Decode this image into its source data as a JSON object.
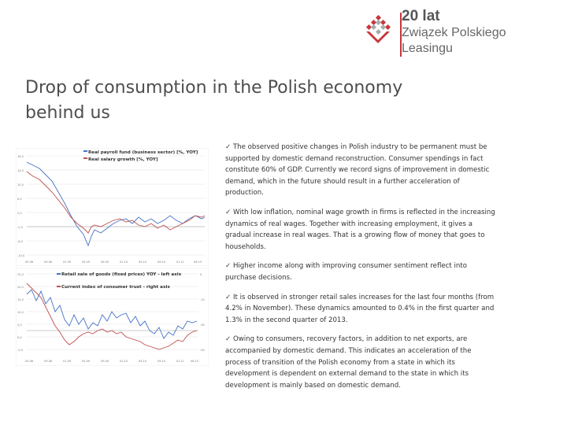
{
  "logo": {
    "line1": "20 lat",
    "line2": "Związek Polskiego",
    "line3": "Leasingu",
    "brand_color": "#c9353a"
  },
  "title": "Drop of consumption in the Polish economy behind us",
  "chart1": {
    "legend1": "Real payroll fund (business sector) [%, YOY]",
    "legend2": "Real salary growth [%, YOY]",
    "series1_color": "#4472c4",
    "series2_color": "#c0504d"
  },
  "chart2": {
    "legend1": "Retail sale of goods (fixed prices) YOY - left axis",
    "legend2": "Current index of consumer trust - right axis",
    "series1_color": "#4472c4",
    "series2_color": "#c0504d"
  },
  "bullets": [
    "The observed positive changes in Polish industry to be permanent must be supported by domestic demand reconstruction. Consumer spendings in fact constitute 60% of GDP. Currently we record signs of improvement in domestic demand, which in the future should result in a further acceleration of production.",
    "With low inflation, nominal wage growth in firms is reflected in the increasing dynamics of real wages. Together with increasing employment, it gives a gradual increase in real wages. That is a growing flow of money that goes to households.",
    "Higher income along with improving consumer sentiment reflect into purchase decisions.",
    "It is observed in stronger retail sales increases for the last four months (from 4.2% in November). These dynamics amounted to 0.4% in the first quarter and 1.3% in the second quarter of 2013.",
    "Owing to consumers, recovery factors, in addition to net exports, are accompanied by domestic demand. This indicates an acceleration of the process of transition of the Polish economy from a state in which its development is dependent on external demand to the state in which its development is mainly based on domestic demand."
  ],
  "check_symbol": "✓"
}
